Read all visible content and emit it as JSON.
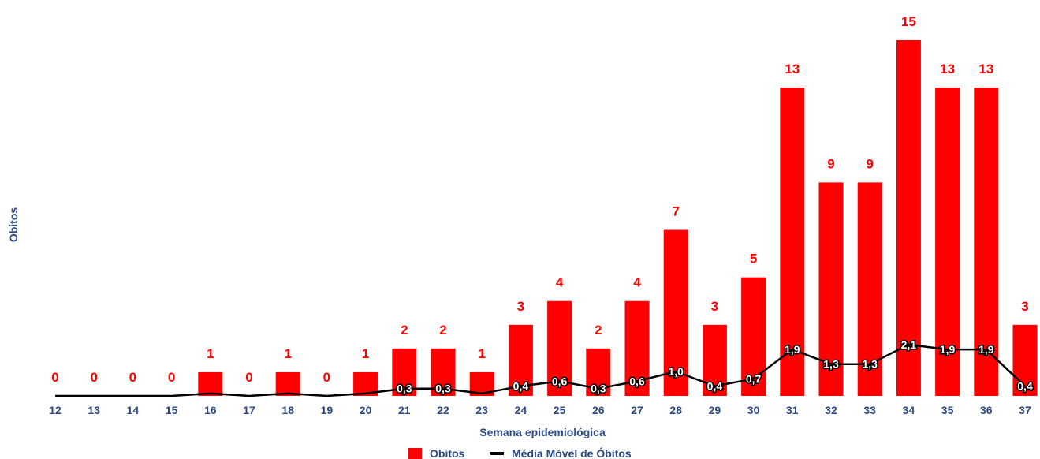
{
  "chart_data": {
    "type": "bar",
    "title": "",
    "xlabel": "Semana epidemiológica",
    "ylabel": "Obitos",
    "ylim": [
      0,
      15
    ],
    "grid": false,
    "legend_position": "bottom",
    "categories": [
      "12",
      "13",
      "14",
      "15",
      "16",
      "17",
      "18",
      "19",
      "20",
      "21",
      "22",
      "23",
      "24",
      "25",
      "26",
      "27",
      "28",
      "29",
      "30",
      "31",
      "32",
      "33",
      "34",
      "35",
      "36",
      "37"
    ],
    "series": [
      {
        "name": "Obitos",
        "type": "bar",
        "color": "#ff0000",
        "values": [
          0,
          0,
          0,
          0,
          1,
          0,
          1,
          0,
          1,
          2,
          2,
          1,
          3,
          4,
          2,
          4,
          7,
          3,
          5,
          13,
          9,
          9,
          15,
          13,
          13,
          3
        ]
      },
      {
        "name": "Média Móvel de Óbitos",
        "type": "line",
        "color": "#000000",
        "values": [
          0,
          0,
          0,
          0,
          0.1,
          0,
          0.1,
          0,
          0.1,
          0.3,
          0.3,
          0.1,
          0.4,
          0.6,
          0.3,
          0.6,
          1.0,
          0.4,
          0.7,
          1.9,
          1.3,
          1.3,
          2.1,
          1.9,
          1.9,
          0.4
        ],
        "labels": [
          null,
          null,
          null,
          null,
          null,
          null,
          null,
          null,
          null,
          "0,3",
          "0,3",
          null,
          "0,4",
          "0,6",
          "0,3",
          "0,6",
          "1,0",
          "0,4",
          "0,7",
          "1,9",
          "1,3",
          "1,3",
          "2,1",
          "1,9",
          "1,9",
          "0,4"
        ]
      }
    ]
  }
}
